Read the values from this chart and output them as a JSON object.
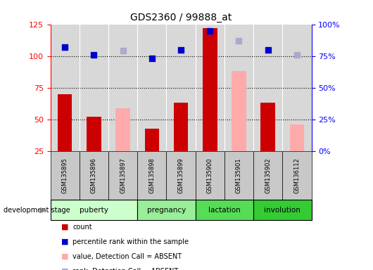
{
  "title": "GDS2360 / 99888_at",
  "samples": [
    "GSM135895",
    "GSM135896",
    "GSM135897",
    "GSM135898",
    "GSM135899",
    "GSM135900",
    "GSM135901",
    "GSM135902",
    "GSM136112"
  ],
  "count_bars": [
    70,
    52,
    null,
    43,
    63,
    122,
    null,
    63,
    null
  ],
  "count_absent_bars": [
    null,
    null,
    59,
    null,
    null,
    null,
    88,
    null,
    46
  ],
  "rank_dots": [
    82,
    76,
    null,
    73,
    80,
    95,
    null,
    80,
    null
  ],
  "rank_absent_dots": [
    null,
    null,
    79,
    null,
    null,
    null,
    87,
    null,
    76
  ],
  "ylim_left": [
    25,
    125
  ],
  "ylim_right": [
    0,
    100
  ],
  "yticks_left": [
    25,
    50,
    75,
    100,
    125
  ],
  "yticks_right": [
    0,
    25,
    50,
    75,
    100
  ],
  "yticklabels_right": [
    "0%",
    "25%",
    "50%",
    "75%",
    "100%"
  ],
  "bar_color_present": "#cc0000",
  "bar_color_absent": "#ffaaaa",
  "dot_color_present": "#0000cc",
  "dot_color_absent": "#aaaacc",
  "bar_width": 0.5,
  "dot_size": 35,
  "stage_data": [
    {
      "label": "puberty",
      "start": 0,
      "end": 2,
      "color": "#ccffcc"
    },
    {
      "label": "pregnancy",
      "start": 3,
      "end": 4,
      "color": "#99ee99"
    },
    {
      "label": "lactation",
      "start": 5,
      "end": 6,
      "color": "#55dd55"
    },
    {
      "label": "involution",
      "start": 7,
      "end": 8,
      "color": "#33cc33"
    }
  ],
  "legend_items": [
    {
      "color": "#cc0000",
      "label": "count"
    },
    {
      "color": "#0000cc",
      "label": "percentile rank within the sample"
    },
    {
      "color": "#ffaaaa",
      "label": "value, Detection Call = ABSENT"
    },
    {
      "color": "#aaaacc",
      "label": "rank, Detection Call = ABSENT"
    }
  ]
}
